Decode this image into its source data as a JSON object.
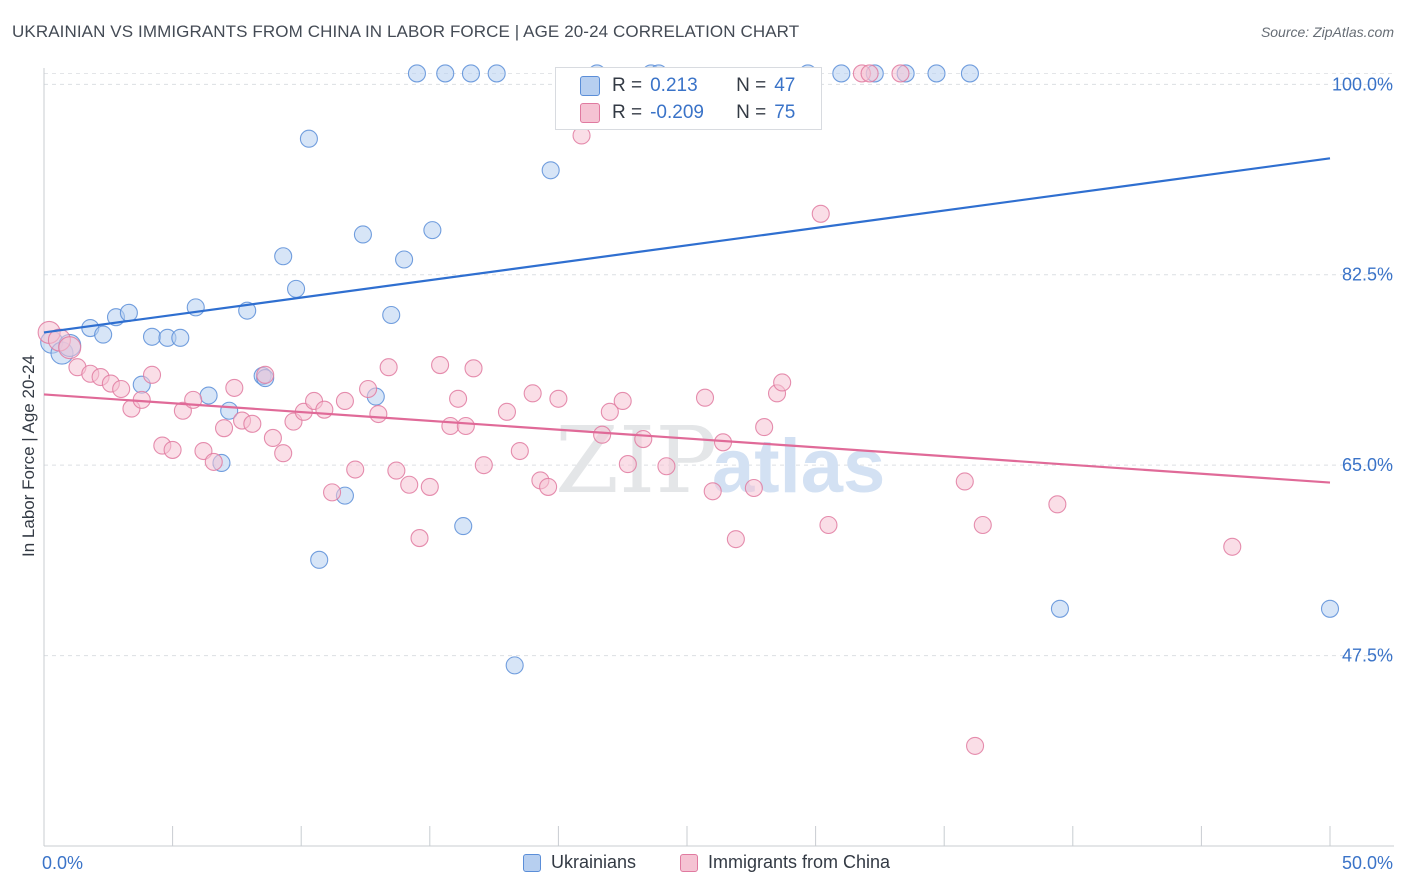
{
  "chart_data": {
    "type": "scatter",
    "title": "UKRAINIAN VS IMMIGRANTS FROM CHINA IN LABOR FORCE | AGE 20-24 CORRELATION CHART",
    "source": "Source: ZipAtlas.com",
    "xlabel": "",
    "ylabel": "In Labor Force | Age 20-24",
    "xlim": [
      0,
      50
    ],
    "ylim": [
      30,
      101.5
    ],
    "x_tick_labels": [
      "0.0%",
      "50.0%"
    ],
    "y_ticks": [
      47.5,
      65.0,
      82.5,
      100.0
    ],
    "y_tick_labels": [
      "47.5%",
      "65.0%",
      "82.5%",
      "100.0%"
    ],
    "grid": true,
    "watermark": "ZIPatlas",
    "legend": {
      "position": "bottom",
      "entries": [
        "Ukrainians",
        "Immigrants from China"
      ]
    },
    "stats": [
      {
        "r_label": "R =",
        "r_value": "0.213",
        "n_label": "N =",
        "n_value": "47"
      },
      {
        "r_label": "R =",
        "r_value": "-0.209",
        "n_label": "N =",
        "n_value": "75"
      }
    ],
    "series": [
      {
        "name": "Ukrainians",
        "color": "#5b8ed8",
        "fill": "#b7cff0",
        "trend": {
          "x0": 0,
          "y0": 77.2,
          "x1": 50,
          "y1": 93.2
        },
        "points": [
          {
            "x": 0.3,
            "y": 76.3
          },
          {
            "x": 0.7,
            "y": 75.3
          },
          {
            "x": 1.0,
            "y": 76.0
          },
          {
            "x": 1.8,
            "y": 77.6
          },
          {
            "x": 2.3,
            "y": 77.0
          },
          {
            "x": 2.8,
            "y": 78.6
          },
          {
            "x": 3.3,
            "y": 79.0
          },
          {
            "x": 3.8,
            "y": 72.4
          },
          {
            "x": 4.2,
            "y": 76.8
          },
          {
            "x": 4.8,
            "y": 76.7
          },
          {
            "x": 5.3,
            "y": 76.7
          },
          {
            "x": 5.9,
            "y": 79.5
          },
          {
            "x": 6.4,
            "y": 71.4
          },
          {
            "x": 7.2,
            "y": 70.0
          },
          {
            "x": 6.9,
            "y": 65.2
          },
          {
            "x": 7.9,
            "y": 79.2
          },
          {
            "x": 8.5,
            "y": 73.2
          },
          {
            "x": 8.6,
            "y": 73.0
          },
          {
            "x": 9.3,
            "y": 84.2
          },
          {
            "x": 9.8,
            "y": 81.2
          },
          {
            "x": 10.3,
            "y": 95.0
          },
          {
            "x": 10.7,
            "y": 56.3
          },
          {
            "x": 11.7,
            "y": 62.2
          },
          {
            "x": 12.4,
            "y": 86.2
          },
          {
            "x": 12.9,
            "y": 71.3
          },
          {
            "x": 13.5,
            "y": 78.8
          },
          {
            "x": 14.0,
            "y": 83.9
          },
          {
            "x": 14.5,
            "y": 101.0
          },
          {
            "x": 15.1,
            "y": 86.6
          },
          {
            "x": 15.6,
            "y": 101.0
          },
          {
            "x": 16.3,
            "y": 59.4
          },
          {
            "x": 16.6,
            "y": 101.0
          },
          {
            "x": 17.6,
            "y": 101.0
          },
          {
            "x": 18.3,
            "y": 46.6
          },
          {
            "x": 19.7,
            "y": 92.1
          },
          {
            "x": 21.5,
            "y": 101.0
          },
          {
            "x": 21.9,
            "y": 100.5
          },
          {
            "x": 23.6,
            "y": 101.0
          },
          {
            "x": 23.9,
            "y": 101.0
          },
          {
            "x": 29.7,
            "y": 101.0
          },
          {
            "x": 31.0,
            "y": 101.0
          },
          {
            "x": 32.3,
            "y": 101.0
          },
          {
            "x": 33.5,
            "y": 101.0
          },
          {
            "x": 34.7,
            "y": 101.0
          },
          {
            "x": 36.0,
            "y": 101.0
          },
          {
            "x": 39.5,
            "y": 51.8
          },
          {
            "x": 50.0,
            "y": 51.8
          }
        ]
      },
      {
        "name": "Immigrants from China",
        "color": "#e07aa0",
        "fill": "#f5c3d3",
        "trend": {
          "x0": 0,
          "y0": 71.5,
          "x1": 50,
          "y1": 63.4
        },
        "points": [
          {
            "x": 0.2,
            "y": 77.2
          },
          {
            "x": 0.6,
            "y": 76.5
          },
          {
            "x": 1.0,
            "y": 75.8
          },
          {
            "x": 1.3,
            "y": 74.0
          },
          {
            "x": 1.8,
            "y": 73.4
          },
          {
            "x": 2.2,
            "y": 73.1
          },
          {
            "x": 2.6,
            "y": 72.5
          },
          {
            "x": 3.0,
            "y": 72.0
          },
          {
            "x": 3.4,
            "y": 70.2
          },
          {
            "x": 3.8,
            "y": 71.0
          },
          {
            "x": 4.2,
            "y": 73.3
          },
          {
            "x": 4.6,
            "y": 66.8
          },
          {
            "x": 5.0,
            "y": 66.4
          },
          {
            "x": 5.4,
            "y": 70.0
          },
          {
            "x": 5.8,
            "y": 71.0
          },
          {
            "x": 6.2,
            "y": 66.3
          },
          {
            "x": 6.6,
            "y": 65.3
          },
          {
            "x": 7.0,
            "y": 68.4
          },
          {
            "x": 7.4,
            "y": 72.1
          },
          {
            "x": 7.7,
            "y": 69.1
          },
          {
            "x": 8.1,
            "y": 68.8
          },
          {
            "x": 8.6,
            "y": 73.3
          },
          {
            "x": 8.9,
            "y": 67.5
          },
          {
            "x": 9.3,
            "y": 66.1
          },
          {
            "x": 9.7,
            "y": 69.0
          },
          {
            "x": 10.1,
            "y": 69.9
          },
          {
            "x": 10.5,
            "y": 70.9
          },
          {
            "x": 10.9,
            "y": 70.1
          },
          {
            "x": 11.2,
            "y": 62.5
          },
          {
            "x": 11.7,
            "y": 70.9
          },
          {
            "x": 12.1,
            "y": 64.6
          },
          {
            "x": 12.6,
            "y": 72.0
          },
          {
            "x": 13.0,
            "y": 69.7
          },
          {
            "x": 13.4,
            "y": 74.0
          },
          {
            "x": 13.7,
            "y": 64.5
          },
          {
            "x": 14.2,
            "y": 63.2
          },
          {
            "x": 14.6,
            "y": 58.3
          },
          {
            "x": 15.0,
            "y": 63.0
          },
          {
            "x": 15.4,
            "y": 74.2
          },
          {
            "x": 15.8,
            "y": 68.6
          },
          {
            "x": 16.1,
            "y": 71.1
          },
          {
            "x": 16.4,
            "y": 68.6
          },
          {
            "x": 16.7,
            "y": 73.9
          },
          {
            "x": 17.1,
            "y": 65.0
          },
          {
            "x": 18.0,
            "y": 69.9
          },
          {
            "x": 18.5,
            "y": 66.3
          },
          {
            "x": 19.0,
            "y": 71.6
          },
          {
            "x": 19.3,
            "y": 63.6
          },
          {
            "x": 19.6,
            "y": 63.0
          },
          {
            "x": 20.0,
            "y": 71.1
          },
          {
            "x": 20.9,
            "y": 95.3
          },
          {
            "x": 21.7,
            "y": 67.8
          },
          {
            "x": 22.0,
            "y": 69.9
          },
          {
            "x": 22.5,
            "y": 70.9
          },
          {
            "x": 22.7,
            "y": 65.1
          },
          {
            "x": 23.3,
            "y": 67.4
          },
          {
            "x": 24.2,
            "y": 64.9
          },
          {
            "x": 25.7,
            "y": 71.2
          },
          {
            "x": 26.0,
            "y": 62.6
          },
          {
            "x": 26.4,
            "y": 67.1
          },
          {
            "x": 26.9,
            "y": 58.2
          },
          {
            "x": 27.6,
            "y": 62.9
          },
          {
            "x": 28.0,
            "y": 68.5
          },
          {
            "x": 28.5,
            "y": 71.6
          },
          {
            "x": 28.7,
            "y": 72.6
          },
          {
            "x": 30.2,
            "y": 88.1
          },
          {
            "x": 30.5,
            "y": 59.5
          },
          {
            "x": 31.8,
            "y": 101.0
          },
          {
            "x": 32.1,
            "y": 101.0
          },
          {
            "x": 33.3,
            "y": 101.0
          },
          {
            "x": 35.8,
            "y": 63.5
          },
          {
            "x": 36.2,
            "y": 39.2
          },
          {
            "x": 36.5,
            "y": 59.5
          },
          {
            "x": 39.4,
            "y": 61.4
          },
          {
            "x": 46.2,
            "y": 57.5
          }
        ]
      }
    ]
  }
}
